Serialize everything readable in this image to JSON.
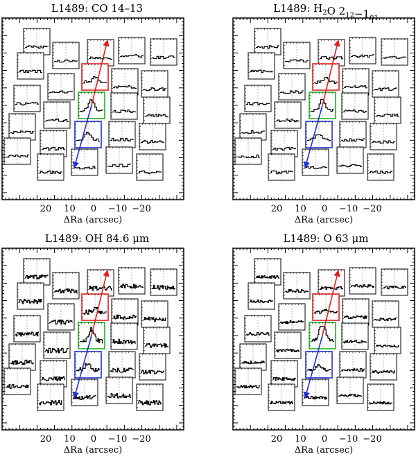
{
  "chart_data": [
    {
      "type": "spectral-map",
      "title_html": "L1489: CO 14–13",
      "title_parts": [
        {
          "t": "L1489: CO 14–13"
        }
      ],
      "xlabel": "ΔRa (arcsec)",
      "xticks": [
        "20",
        "10",
        "0",
        "−10",
        "−20"
      ],
      "profile": "co"
    },
    {
      "type": "spectral-map",
      "title_parts": [
        {
          "t": "L1489: H"
        },
        {
          "t": "2",
          "sub": true
        },
        {
          "t": "O 2"
        },
        {
          "t": "12",
          "sub": true
        },
        {
          "t": "−1"
        },
        {
          "t": "01",
          "sub": true
        }
      ],
      "xlabel": "ΔRa (arcsec)",
      "xticks": [
        "20",
        "10",
        "0",
        "−10",
        "−20"
      ],
      "profile": "h2o"
    },
    {
      "type": "spectral-map",
      "title_parts": [
        {
          "t": "L1489: OH 84.6 μm"
        }
      ],
      "xlabel": "ΔRa (arcsec)",
      "xticks": [
        "20",
        "10",
        "0",
        "−10",
        "−20"
      ],
      "profile": "oh"
    },
    {
      "type": "spectral-map",
      "title_parts": [
        {
          "t": "L1489: O 63 μm"
        }
      ],
      "xlabel": "ΔRa (arcsec)",
      "xticks": [
        "20",
        "10",
        "0",
        "−10",
        "−20"
      ],
      "profile": "o"
    }
  ],
  "colors": {
    "red_outflow": "#e02020",
    "green_center": "#20b020",
    "blue_outflow": "#2030d0",
    "frame": "#000000"
  }
}
